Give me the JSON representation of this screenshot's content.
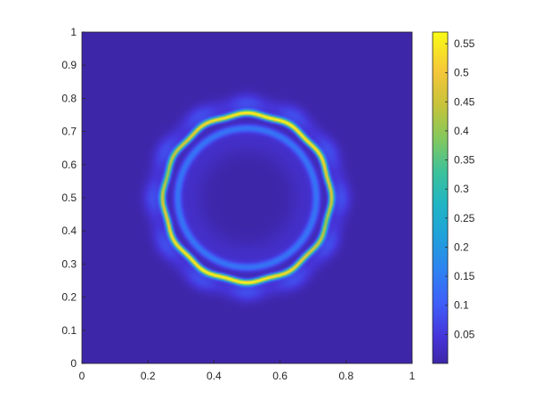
{
  "chart_data": {
    "type": "heatmap",
    "title": "",
    "xlabel": "",
    "ylabel": "",
    "xlim": [
      0,
      1
    ],
    "ylim": [
      0,
      1
    ],
    "x_ticks": [
      "0",
      "0.2",
      "0.4",
      "0.6",
      "0.8",
      "1"
    ],
    "y_ticks": [
      "0",
      "0.1",
      "0.2",
      "0.3",
      "0.4",
      "0.5",
      "0.6",
      "0.7",
      "0.8",
      "0.9",
      "1"
    ],
    "grid": false,
    "colormap": "parula",
    "colorbar": {
      "position": "right",
      "range": [
        0,
        0.57
      ],
      "ticks": [
        "0.05",
        "0.1",
        "0.15",
        "0.2",
        "0.25",
        "0.3",
        "0.35",
        "0.4",
        "0.45",
        "0.5",
        "0.55"
      ]
    },
    "field": {
      "description_shape": "ring",
      "center": [
        0.5,
        0.5
      ],
      "ring_radius": 0.25,
      "ring_peak_value": 0.57,
      "inner_echo_radius": 0.21,
      "inner_echo_value": 0.12,
      "outer_halo_value": 0.08,
      "background_value": 0.0,
      "lobes": 12
    },
    "colors": {
      "background": "#3e26a8",
      "low": "#3e26a8",
      "mid": "#2ab8c8",
      "high": "#f9fb15"
    }
  }
}
